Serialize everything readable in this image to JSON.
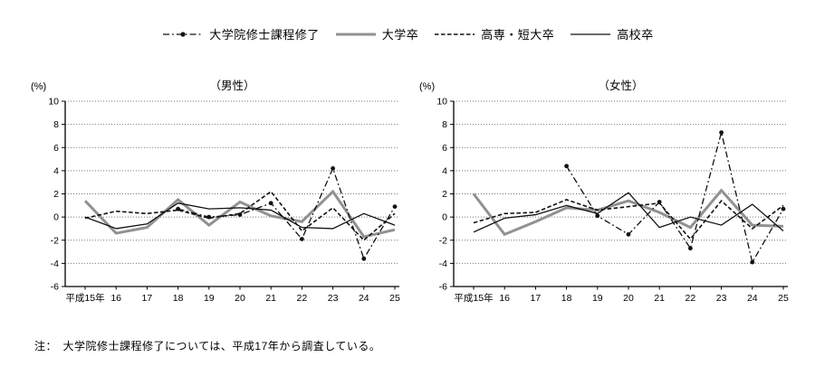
{
  "legend": [
    {
      "key": "grad",
      "label": "大学院修士課程修了"
    },
    {
      "key": "univ",
      "label": "大学卒"
    },
    {
      "key": "kosen",
      "label": "高専・短大卒"
    },
    {
      "key": "high",
      "label": "高校卒"
    }
  ],
  "note": "注：　大学院修士課程修了については、平成17年から調査している。",
  "chart_data": [
    {
      "type": "line",
      "title": "（男性）",
      "unit_label": "(%)",
      "categories": [
        "平成15年",
        "16",
        "17",
        "18",
        "19",
        "20",
        "21",
        "22",
        "23",
        "24",
        "25"
      ],
      "ylim": [
        -6,
        10
      ],
      "yticks": [
        10,
        8,
        6,
        4,
        2,
        0,
        -2,
        -4,
        -6
      ],
      "grid": "dotted-horizontal",
      "legend_position": "top-center-shared",
      "series": [
        {
          "key": "grad",
          "name": "大学院修士課程修了",
          "values": [
            null,
            null,
            null,
            0.7,
            0.0,
            0.2,
            1.2,
            -1.9,
            4.2,
            -3.6,
            0.9
          ]
        },
        {
          "key": "univ",
          "name": "大学卒",
          "values": [
            1.4,
            -1.4,
            -0.9,
            1.5,
            -0.7,
            1.3,
            0.1,
            -0.4,
            2.2,
            -1.7,
            -1.1
          ]
        },
        {
          "key": "kosen",
          "name": "高専・短大卒",
          "values": [
            -0.1,
            0.5,
            0.3,
            0.6,
            -0.1,
            0.3,
            2.2,
            -1.2,
            0.8,
            -2.0,
            0.3
          ]
        },
        {
          "key": "high",
          "name": "高校卒",
          "values": [
            0.0,
            -1.0,
            -0.6,
            1.2,
            0.7,
            0.8,
            0.6,
            -0.9,
            -1.0,
            0.3,
            -0.7
          ]
        }
      ]
    },
    {
      "type": "line",
      "title": "（女性）",
      "unit_label": "(%)",
      "categories": [
        "平成15年",
        "16",
        "17",
        "18",
        "19",
        "20",
        "21",
        "22",
        "23",
        "24",
        "25"
      ],
      "ylim": [
        -6,
        10
      ],
      "yticks": [
        10,
        8,
        6,
        4,
        2,
        0,
        -2,
        -4,
        -6
      ],
      "grid": "dotted-horizontal",
      "legend_position": "top-center-shared",
      "series": [
        {
          "key": "grad",
          "name": "大学院修士課程修了",
          "values": [
            null,
            null,
            null,
            4.4,
            0.1,
            -1.5,
            1.3,
            -2.7,
            7.3,
            -3.9,
            0.7
          ]
        },
        {
          "key": "univ",
          "name": "大学卒",
          "values": [
            2.0,
            -1.5,
            -0.4,
            0.8,
            0.6,
            1.4,
            0.4,
            -0.9,
            2.3,
            -0.7,
            -0.8
          ]
        },
        {
          "key": "kosen",
          "name": "高専・短大卒",
          "values": [
            -0.5,
            0.3,
            0.4,
            1.5,
            0.6,
            0.9,
            1.2,
            -1.9,
            1.4,
            -1.0,
            1.0
          ]
        },
        {
          "key": "high",
          "name": "高校卒",
          "values": [
            -1.3,
            -0.1,
            0.2,
            1.0,
            0.3,
            2.1,
            -0.9,
            0.0,
            -0.7,
            1.1,
            -1.2
          ]
        }
      ]
    }
  ],
  "colors": {
    "line_black": "#111111",
    "line_gray": "#919191",
    "grid": "#777777",
    "background": "#ffffff"
  }
}
